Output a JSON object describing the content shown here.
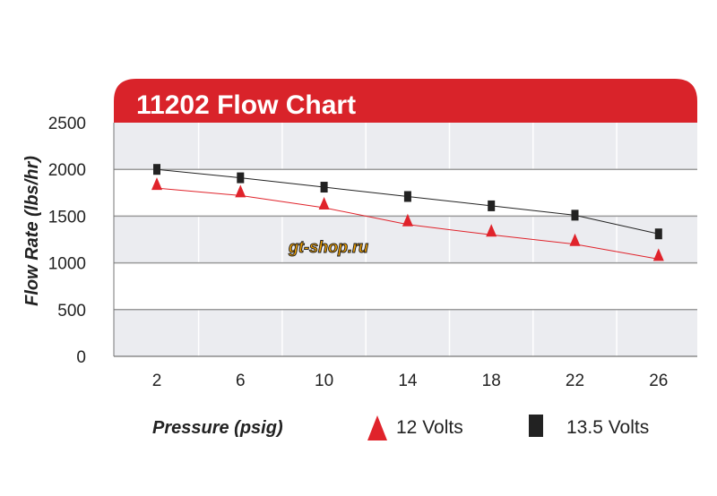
{
  "chart_data": {
    "type": "line",
    "title": "11202 Flow Chart",
    "xlabel": "Pressure (psig)",
    "ylabel": "Flow Rate (lbs/hr)",
    "categories": [
      "2",
      "6",
      "10",
      "14",
      "18",
      "22",
      "26"
    ],
    "ylim": [
      0,
      2500
    ],
    "yticks": [
      "0",
      "500",
      "1000",
      "1500",
      "2000",
      "2500"
    ],
    "series": [
      {
        "name": "12 Volts",
        "marker": "triangle",
        "color": "#e0232b",
        "values": [
          1800,
          1720,
          1590,
          1410,
          1300,
          1200,
          1040
        ]
      },
      {
        "name": "13.5 Volts",
        "marker": "square",
        "color": "#222222",
        "values": [
          2000,
          1910,
          1810,
          1710,
          1610,
          1510,
          1310
        ]
      }
    ],
    "legend_position": "bottom",
    "grid": true,
    "watermark": "gt-shop.ru"
  },
  "colors": {
    "title_bar": "#d9232a",
    "band_gray": "#ebecf0",
    "grid": "#9a9a9a"
  }
}
